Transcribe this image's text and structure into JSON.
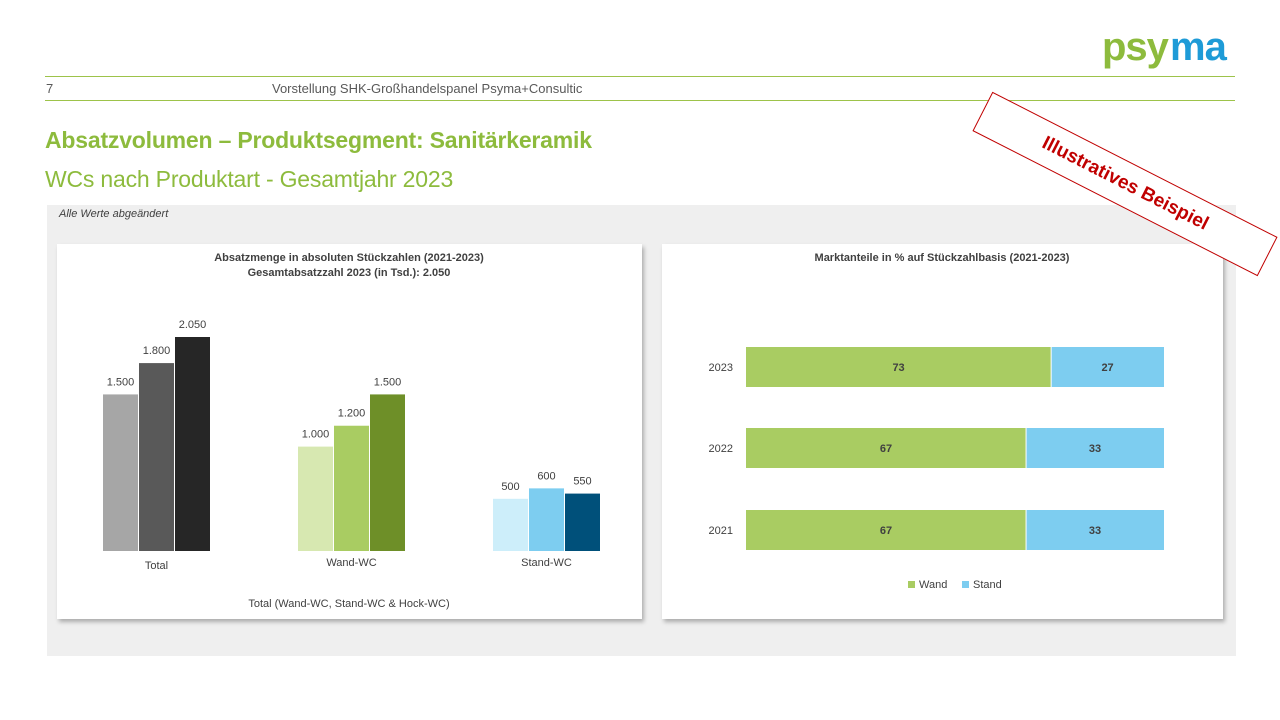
{
  "header": {
    "page_number": "7",
    "text": "Vorstellung SHK-Großhandelspanel Psyma+Consultic",
    "logo": "psyma",
    "brand_color": "#8dbb3d"
  },
  "title": "Absatzvolumen – Produktsegment: Sanitärkeramik",
  "subtitle": "WCs nach Produktart - Gesamtjahr 2023",
  "stamp": "Illustratives Beispiel",
  "note": "Alle Werte abgeändert",
  "chart_data": [
    {
      "type": "bar",
      "title": "Absatzmenge in absoluten Stückzahlen (2021-2023)",
      "subtitle": "Gesamtabsatzzahl  2023 (in Tsd.):  2.050",
      "xlabel": "Total (Wand-WC, Stand-WC & Hock-WC)",
      "ylabel": "",
      "ylim": [
        0,
        2050
      ],
      "grid": false,
      "categories": [
        "Total",
        "Wand-WC",
        "Stand-WC"
      ],
      "series": [
        {
          "values": [
            1500,
            1000,
            500
          ]
        },
        {
          "values": [
            1800,
            1200,
            600
          ]
        },
        {
          "values": [
            2050,
            1500,
            550
          ]
        }
      ],
      "data_labels": [
        [
          "1.500",
          "1.800",
          "2.050"
        ],
        [
          "1.000",
          "1.200",
          "1.500"
        ],
        [
          "500",
          "600",
          "550"
        ]
      ],
      "colors": [
        [
          "#a6a6a6",
          "#595959",
          "#262626"
        ],
        [
          "#d7e8b1",
          "#a9cc62",
          "#6e8f28"
        ],
        [
          "#cdeefa",
          "#7dcdf0",
          "#00507a"
        ]
      ]
    },
    {
      "type": "bar",
      "orientation": "horizontal",
      "stacked": true,
      "title": "Marktanteile in % auf Stückzahlbasis   (2021-2023)",
      "xlabel": "",
      "ylabel": "",
      "xlim": [
        0,
        100
      ],
      "grid": false,
      "legend_position": "bottom",
      "categories": [
        "2023",
        "2022",
        "2021"
      ],
      "series": [
        {
          "name": "Wand",
          "values": [
            73,
            67,
            67
          ],
          "color": "#a9cc62"
        },
        {
          "name": "Stand",
          "values": [
            27,
            33,
            33
          ],
          "color": "#7dcdf0"
        }
      ]
    }
  ]
}
